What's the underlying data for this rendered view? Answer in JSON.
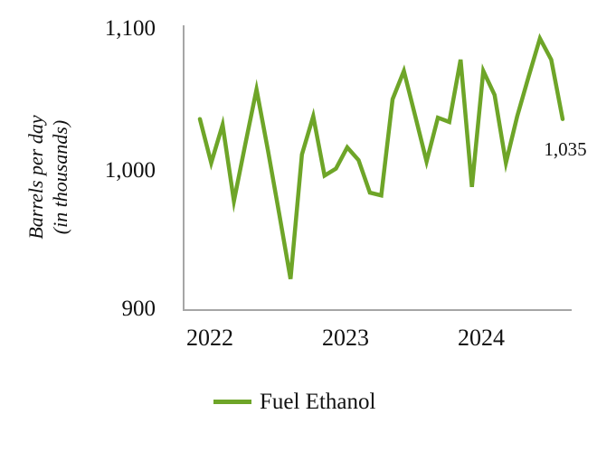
{
  "axis_color": "#a6a6a6",
  "chart_data": {
    "type": "line",
    "ylabel_line1": "Barrels per day",
    "ylabel_line2": "(in thousands)",
    "ylim": [
      900,
      1100
    ],
    "y_tick_labels": [
      "1,100",
      "1,000",
      "900"
    ],
    "x_tick_labels": [
      "2022",
      "2023",
      "2024"
    ],
    "grid": false,
    "legend_position": "bottom",
    "x": [
      "Jan 2022",
      "Feb 2022",
      "Mar 2022",
      "Apr 2022",
      "May 2022",
      "Jun 2022",
      "Jul 2022",
      "Aug 2022",
      "Sep 2022",
      "Oct 2022",
      "Nov 2022",
      "Dec 2022",
      "Jan 2023",
      "Feb 2023",
      "Mar 2023",
      "Apr 2023",
      "May 2023",
      "Jun 2023",
      "Jul 2023",
      "Aug 2023",
      "Sep 2023",
      "Oct 2023",
      "Nov 2023",
      "Dec 2023",
      "Jan 2024",
      "Feb 2024",
      "Mar 2024",
      "Apr 2024",
      "May 2024",
      "Jun 2024",
      "Jul 2024",
      "Aug 2024",
      "Sep 2024"
    ],
    "series": [
      {
        "name": "Fuel Ethanol",
        "color": "#6ea528",
        "values": [
          1035,
          1004,
          1031,
          977,
          1017,
          1056,
          1013,
          968,
          922,
          1010,
          1037,
          995,
          1000,
          1015,
          1006,
          983,
          981,
          1049,
          1069,
          1037,
          1005,
          1036,
          1033,
          1077,
          987,
          1069,
          1052,
          1004,
          1037,
          1065,
          1092,
          1077,
          1035
        ]
      }
    ],
    "last_point_label": "1,035"
  },
  "legend": {
    "label": "Fuel Ethanol"
  }
}
